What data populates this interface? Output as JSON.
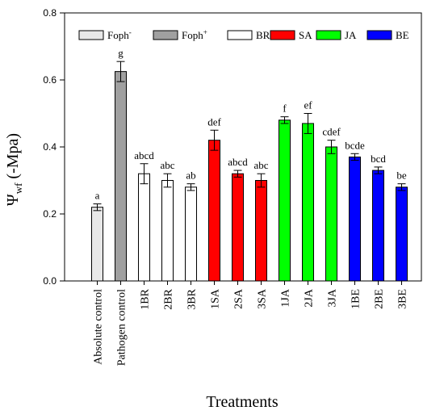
{
  "chart_data": {
    "type": "bar",
    "xlabel": "Treatments",
    "ylabel": {
      "main": "Ψ",
      "sub": "wf",
      "suffix": " (-Mpa)"
    },
    "ylim": [
      0,
      0.8
    ],
    "yticks": [
      "0.0",
      "0.2",
      "0.4",
      "0.6",
      "0.8"
    ],
    "ytick_values": [
      0,
      0.2,
      0.4,
      0.6,
      0.8
    ],
    "categories": [
      "Absolute control",
      "Pathogen control",
      "1BR",
      "2BR",
      "3BR",
      "1SA",
      "2SA",
      "3SA",
      "1JA",
      "2JA",
      "3JA",
      "1BE",
      "2BE",
      "3BE"
    ],
    "values": [
      0.22,
      0.625,
      0.32,
      0.3,
      0.28,
      0.42,
      0.32,
      0.3,
      0.48,
      0.47,
      0.4,
      0.37,
      0.33,
      0.28
    ],
    "errors": [
      0.01,
      0.03,
      0.03,
      0.02,
      0.01,
      0.03,
      0.01,
      0.02,
      0.01,
      0.03,
      0.02,
      0.01,
      0.01,
      0.01
    ],
    "group_index": [
      0,
      1,
      2,
      2,
      2,
      3,
      3,
      3,
      4,
      4,
      4,
      5,
      5,
      5
    ],
    "letters": [
      "a",
      "g",
      "abcd",
      "abc",
      "ab",
      "def",
      "abcd",
      "abc",
      "f",
      "ef",
      "cdef",
      "bcde",
      "bcd",
      "be"
    ],
    "legend": [
      {
        "name": "Foph",
        "sup": "-",
        "color": "#e8e8e8"
      },
      {
        "name": "Foph",
        "sup": "+",
        "color": "#a0a0a0"
      },
      {
        "name": "BR",
        "sup": "",
        "color": "#ffffff"
      },
      {
        "name": "SA",
        "sup": "",
        "color": "#ff0000"
      },
      {
        "name": "JA",
        "sup": "",
        "color": "#00ff00"
      },
      {
        "name": "BE",
        "sup": "",
        "color": "#0000ff"
      }
    ],
    "legend_position": "top",
    "grid": false
  }
}
